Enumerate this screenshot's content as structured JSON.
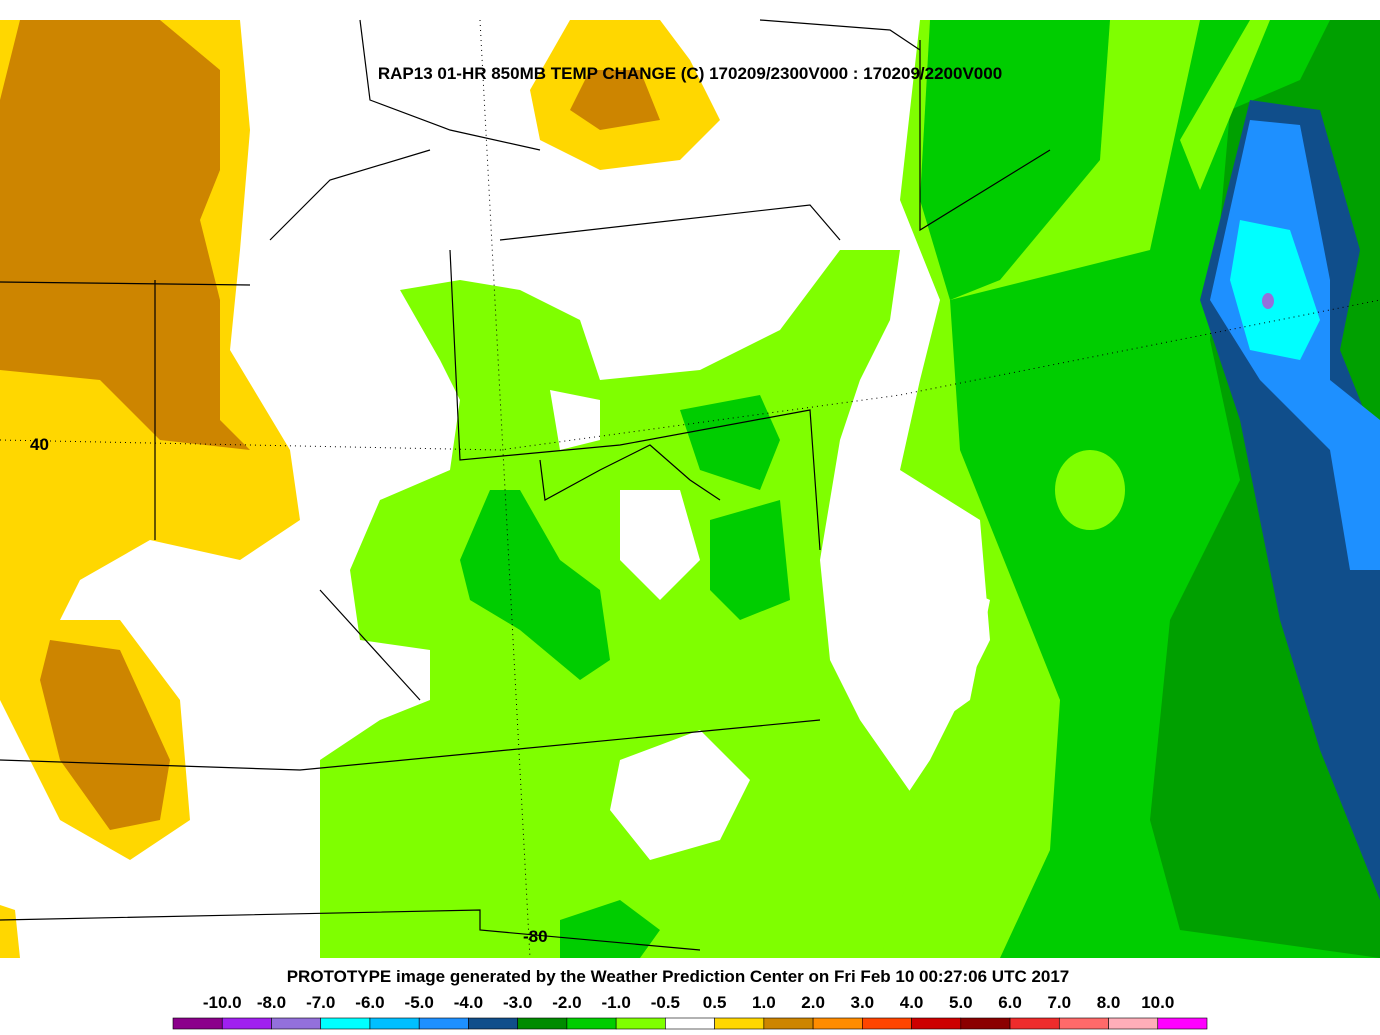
{
  "header": {
    "title": "RAP13 01-HR 850MB TEMP CHANGE (C) 170209/2300V000 : 170209/2200V000"
  },
  "map": {
    "lat_label": "40",
    "lon_label": "-80"
  },
  "footer": {
    "text": "PROTOTYPE image generated by the Weather Prediction Center on Fri Feb 10 00:27:06 UTC 2017"
  },
  "colorbar": {
    "labels": [
      "-10.0",
      "-8.0",
      "-7.0",
      "-6.0",
      "-5.0",
      "-4.0",
      "-3.0",
      "-2.0",
      "-1.0",
      "-0.5",
      "0.5",
      "1.0",
      "2.0",
      "3.0",
      "4.0",
      "5.0",
      "6.0",
      "7.0",
      "8.0",
      "10.0"
    ],
    "colors": [
      "#8b008b",
      "#a020f0",
      "#9370db",
      "#00ffff",
      "#00bfff",
      "#1e90ff",
      "#104e8b",
      "#008b00",
      "#00cd00",
      "#7fff00",
      "#ffffff",
      "#ffd700",
      "#cd8500",
      "#ff8c00",
      "#ff4500",
      "#cd0000",
      "#8b0000",
      "#ee2c2c",
      "#ff6a6a",
      "#ffaeb9",
      "#ff00ff"
    ]
  }
}
